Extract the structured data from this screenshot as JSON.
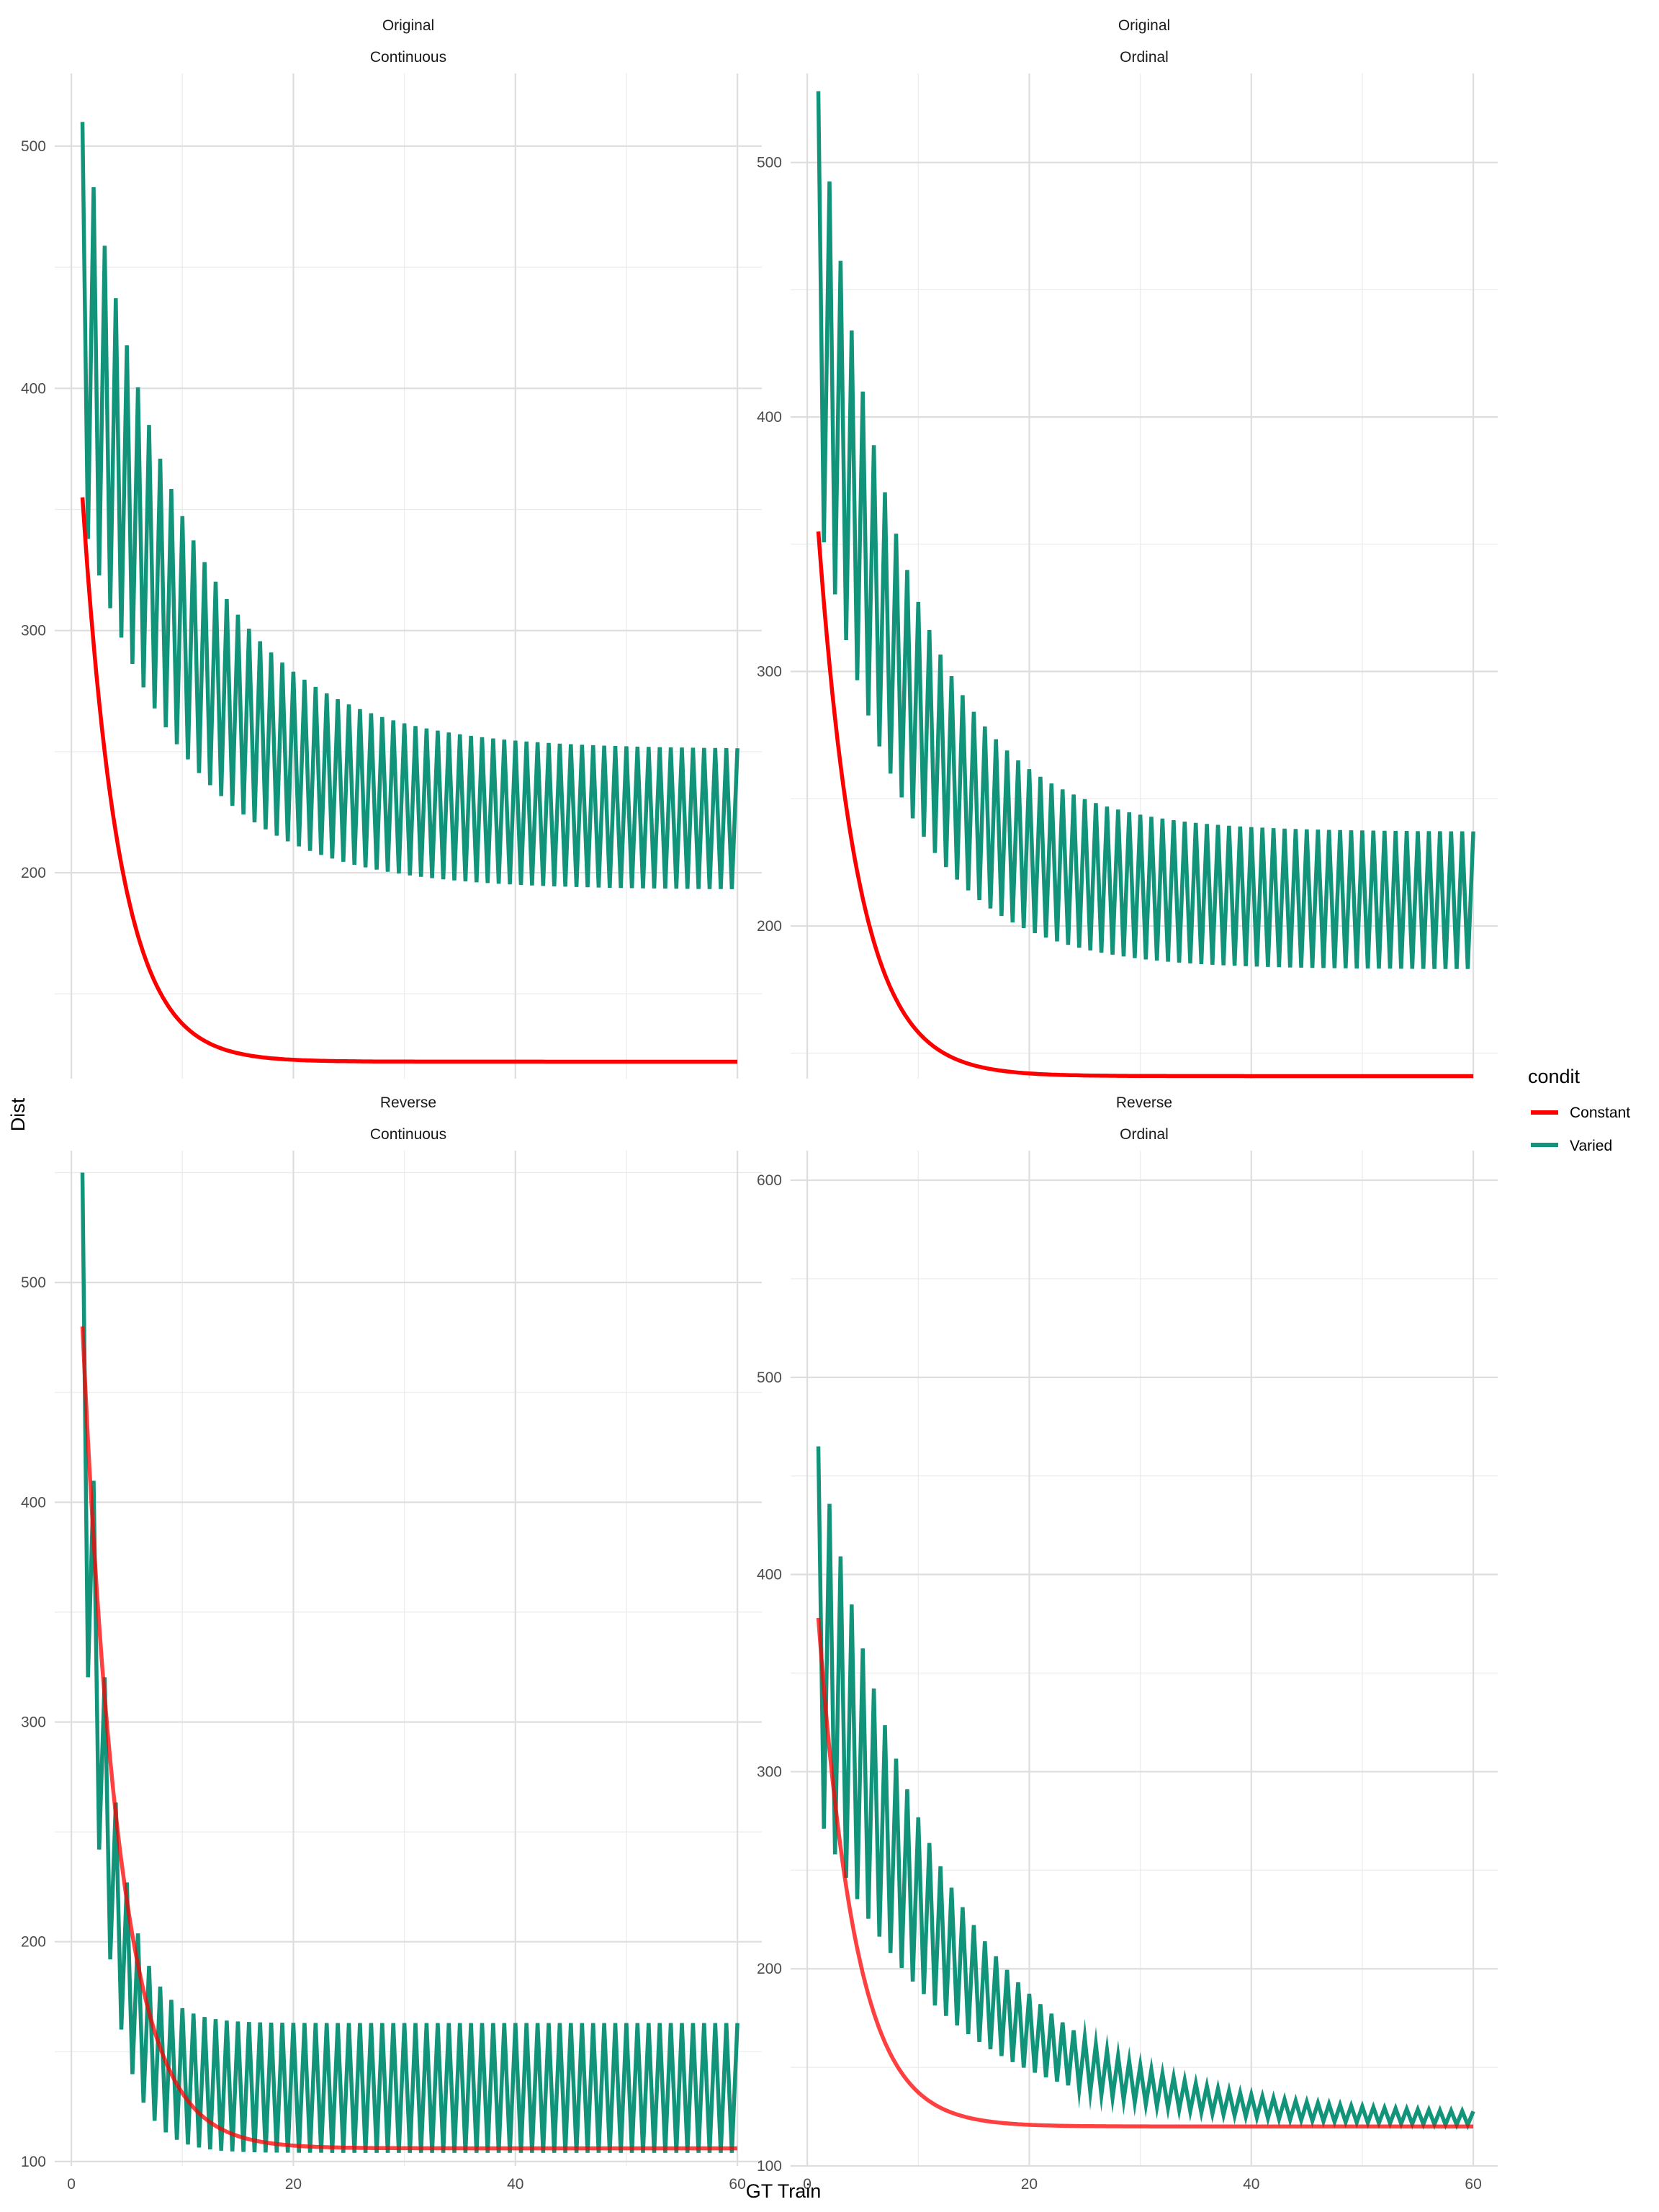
{
  "chart_data": {
    "type": "line",
    "xlabel": "GT Train",
    "ylabel": "Dist",
    "legend": {
      "title": "condit",
      "placement": "right",
      "entries": [
        {
          "label": "Constant",
          "color": "#ff0000"
        },
        {
          "label": "Varied",
          "color": "#12947a"
        }
      ]
    },
    "x_ticks": [
      0,
      20,
      40,
      60
    ],
    "xlim": [
      -1.5,
      62.2
    ],
    "grid": true,
    "panels": [
      {
        "strip_top": "Original",
        "strip_bottom": "Continuous",
        "ylim": [
          115,
          530
        ],
        "y_ticks": [
          200,
          300,
          400,
          500
        ],
        "constant": {
          "start": 355,
          "end": 122,
          "rate": 0.3
        },
        "varied": {
          "upper_start": 510,
          "upper_end": 251,
          "lower_start": 346,
          "lower_end": 193,
          "rate": 0.11
        }
      },
      {
        "strip_top": "Original",
        "strip_bottom": "Ordinal",
        "ylim": [
          140,
          535
        ],
        "y_ticks": [
          200,
          300,
          400,
          500
        ],
        "constant": {
          "start": 355,
          "end": 141,
          "rate": 0.28
        },
        "varied": {
          "upper_start": 528,
          "upper_end": 237,
          "lower_start": 362,
          "lower_end": 183,
          "rate": 0.13
        }
      },
      {
        "strip_top": "Reverse",
        "strip_bottom": "Continuous",
        "ylim": [
          98,
          560
        ],
        "y_ticks": [
          100,
          200,
          300,
          400,
          500
        ],
        "constant": {
          "start": 480,
          "end": 106,
          "rate": 0.3
        },
        "varied": {
          "upper_start": 550,
          "upper_end": 163,
          "lower_start": 375,
          "lower_end": 104,
          "rate": 0.45
        }
      },
      {
        "strip_top": "Reverse",
        "strip_bottom": "Ordinal",
        "ylim": [
          100,
          615
        ],
        "y_ticks": [
          100,
          200,
          300,
          400,
          500,
          600
        ],
        "constant": {
          "start": 378,
          "end": 120,
          "rate": 0.3
        },
        "varied": {
          "upper_start": 465,
          "upper_end": 126,
          "lower_start": 278,
          "lower_end": 120,
          "rate": 0.09
        }
      }
    ]
  }
}
